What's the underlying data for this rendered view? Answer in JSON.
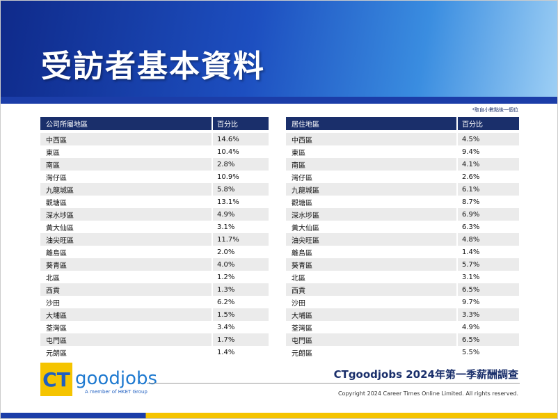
{
  "header": {
    "title": "受訪者基本資料",
    "note": "*取自小數點後一個位"
  },
  "tables": [
    {
      "columns": [
        "公司所屬地區",
        "百分比"
      ],
      "rows": [
        [
          "中西區",
          "14.6%"
        ],
        [
          "東區",
          "10.4%"
        ],
        [
          "南區",
          "2.8%"
        ],
        [
          "灣仔區",
          "10.9%"
        ],
        [
          "九龍城區",
          "5.8%"
        ],
        [
          "觀塘區",
          "13.1%"
        ],
        [
          "深水埗區",
          "4.9%"
        ],
        [
          "黃大仙區",
          "3.1%"
        ],
        [
          "油尖旺區",
          "11.7%"
        ],
        [
          "離島區",
          "2.0%"
        ],
        [
          "葵青區",
          "4.0%"
        ],
        [
          "北區",
          "1.2%"
        ],
        [
          "西貢",
          "1.3%"
        ],
        [
          "沙田",
          "6.2%"
        ],
        [
          "大埔區",
          "1.5%"
        ],
        [
          "荃灣區",
          "3.4%"
        ],
        [
          "屯門區",
          "1.7%"
        ],
        [
          "元朗區",
          "1.4%"
        ]
      ]
    },
    {
      "columns": [
        "居住地區",
        "百分比"
      ],
      "rows": [
        [
          "中西區",
          "4.5%"
        ],
        [
          "東區",
          "9.4%"
        ],
        [
          "南區",
          "4.1%"
        ],
        [
          "灣仔區",
          "2.6%"
        ],
        [
          "九龍城區",
          "6.1%"
        ],
        [
          "觀塘區",
          "8.7%"
        ],
        [
          "深水埗區",
          "6.9%"
        ],
        [
          "黃大仙區",
          "6.3%"
        ],
        [
          "油尖旺區",
          "4.8%"
        ],
        [
          "離島區",
          "1.4%"
        ],
        [
          "葵青區",
          "5.7%"
        ],
        [
          "北區",
          "3.1%"
        ],
        [
          "西貢",
          "6.5%"
        ],
        [
          "沙田",
          "9.7%"
        ],
        [
          "大埔區",
          "3.3%"
        ],
        [
          "荃灣區",
          "4.9%"
        ],
        [
          "屯門區",
          "6.5%"
        ],
        [
          "元朗區",
          "5.5%"
        ]
      ]
    }
  ],
  "footer": {
    "logo_ct": "CT",
    "logo_name": "goodjobs",
    "logo_tagline": "A member of HKET Group",
    "survey": "CTgoodjobs 2024年第一季薪酬調查",
    "copyright": "Copyright 2024 Career Times Online Limited. All rights reserved."
  }
}
